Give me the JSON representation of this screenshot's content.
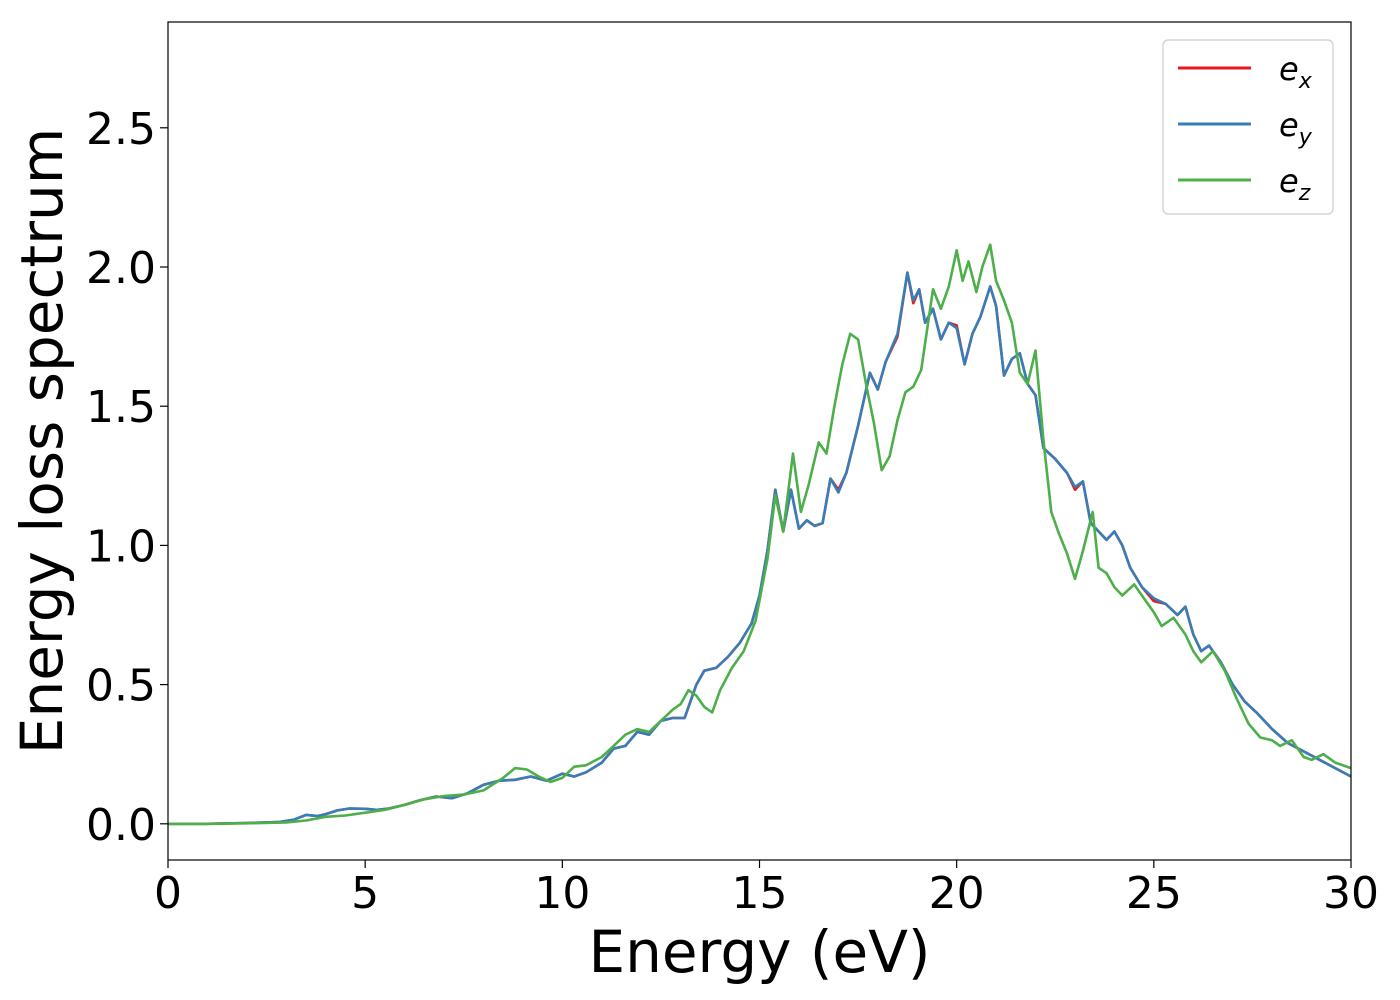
{
  "chart_data": {
    "type": "line",
    "title": "",
    "xlabel": "Energy (eV)",
    "ylabel": "Energy loss spectrum",
    "xlim": [
      0,
      30
    ],
    "ylim": [
      -0.13,
      2.88
    ],
    "xticks": [
      "0",
      "5",
      "10",
      "15",
      "20",
      "25",
      "30"
    ],
    "yticks": [
      "0.0",
      "0.5",
      "1.0",
      "1.5",
      "2.0",
      "2.5"
    ],
    "grid": false,
    "legend_position": "top-right",
    "series": [
      {
        "name": "e_x",
        "legend_base": "e",
        "legend_sub": "x",
        "color": "#e41a1c",
        "x": [
          0,
          1,
          2,
          2.8,
          3.2,
          3.5,
          3.8,
          4.0,
          4.3,
          4.6,
          5.0,
          5.3,
          5.6,
          6.0,
          6.4,
          6.8,
          7.2,
          7.6,
          8.0,
          8.4,
          8.8,
          9.2,
          9.6,
          10.0,
          10.3,
          10.6,
          11.0,
          11.3,
          11.6,
          11.9,
          12.2,
          12.5,
          12.8,
          13.1,
          13.4,
          13.6,
          13.9,
          14.2,
          14.5,
          14.8,
          15.0,
          15.2,
          15.4,
          15.6,
          15.8,
          16.0,
          16.2,
          16.4,
          16.6,
          16.8,
          17.0,
          17.2,
          17.5,
          17.8,
          18.0,
          18.2,
          18.5,
          18.75,
          18.9,
          19.05,
          19.2,
          19.4,
          19.6,
          19.8,
          20.0,
          20.2,
          20.4,
          20.6,
          20.85,
          21.0,
          21.2,
          21.4,
          21.6,
          21.8,
          22.0,
          22.2,
          22.5,
          22.8,
          23.0,
          23.2,
          23.4,
          23.6,
          23.8,
          24.0,
          24.2,
          24.4,
          24.7,
          25.0,
          25.3,
          25.6,
          25.8,
          26.0,
          26.2,
          26.4,
          26.7,
          27.0,
          27.3,
          27.6,
          28.0,
          28.4,
          28.8,
          29.2,
          29.6,
          30.0
        ],
        "y": [
          0.0,
          0.0,
          0.003,
          0.006,
          0.015,
          0.032,
          0.028,
          0.035,
          0.048,
          0.055,
          0.054,
          0.05,
          0.055,
          0.068,
          0.085,
          0.098,
          0.092,
          0.11,
          0.14,
          0.155,
          0.158,
          0.17,
          0.155,
          0.18,
          0.17,
          0.185,
          0.22,
          0.27,
          0.28,
          0.33,
          0.32,
          0.37,
          0.38,
          0.38,
          0.5,
          0.55,
          0.56,
          0.6,
          0.65,
          0.72,
          0.82,
          0.98,
          1.2,
          1.05,
          1.2,
          1.06,
          1.09,
          1.07,
          1.08,
          1.24,
          1.2,
          1.26,
          1.43,
          1.62,
          1.56,
          1.66,
          1.75,
          1.98,
          1.87,
          1.92,
          1.8,
          1.85,
          1.74,
          1.8,
          1.79,
          1.65,
          1.76,
          1.82,
          1.93,
          1.86,
          1.61,
          1.67,
          1.69,
          1.58,
          1.54,
          1.35,
          1.31,
          1.26,
          1.2,
          1.23,
          1.08,
          1.05,
          1.02,
          1.05,
          1.0,
          0.92,
          0.85,
          0.8,
          0.79,
          0.75,
          0.78,
          0.68,
          0.62,
          0.64,
          0.58,
          0.5,
          0.44,
          0.4,
          0.34,
          0.29,
          0.26,
          0.23,
          0.2,
          0.17
        ]
      },
      {
        "name": "e_y",
        "legend_base": "e",
        "legend_sub": "y",
        "color": "#377eb8",
        "x": [
          0,
          1,
          2,
          2.8,
          3.2,
          3.5,
          3.8,
          4.0,
          4.3,
          4.6,
          5.0,
          5.3,
          5.6,
          6.0,
          6.4,
          6.8,
          7.2,
          7.6,
          8.0,
          8.4,
          8.8,
          9.2,
          9.6,
          10.0,
          10.3,
          10.6,
          11.0,
          11.3,
          11.6,
          11.9,
          12.2,
          12.5,
          12.8,
          13.1,
          13.4,
          13.6,
          13.9,
          14.2,
          14.5,
          14.8,
          15.0,
          15.2,
          15.4,
          15.6,
          15.8,
          16.0,
          16.2,
          16.4,
          16.6,
          16.8,
          17.0,
          17.2,
          17.5,
          17.8,
          18.0,
          18.2,
          18.5,
          18.75,
          18.9,
          19.05,
          19.2,
          19.4,
          19.6,
          19.8,
          20.0,
          20.2,
          20.4,
          20.6,
          20.85,
          21.0,
          21.2,
          21.4,
          21.6,
          21.8,
          22.0,
          22.2,
          22.5,
          22.8,
          23.0,
          23.2,
          23.4,
          23.6,
          23.8,
          24.0,
          24.2,
          24.4,
          24.7,
          25.0,
          25.3,
          25.6,
          25.8,
          26.0,
          26.2,
          26.4,
          26.7,
          27.0,
          27.3,
          27.6,
          28.0,
          28.4,
          28.8,
          29.2,
          29.6,
          30.0
        ],
        "y": [
          0.0,
          0.0,
          0.003,
          0.006,
          0.015,
          0.032,
          0.028,
          0.035,
          0.048,
          0.055,
          0.054,
          0.05,
          0.055,
          0.068,
          0.085,
          0.098,
          0.092,
          0.11,
          0.14,
          0.155,
          0.158,
          0.17,
          0.155,
          0.18,
          0.17,
          0.185,
          0.22,
          0.27,
          0.28,
          0.33,
          0.32,
          0.37,
          0.38,
          0.38,
          0.5,
          0.55,
          0.56,
          0.6,
          0.65,
          0.72,
          0.82,
          0.98,
          1.2,
          1.05,
          1.2,
          1.06,
          1.09,
          1.07,
          1.08,
          1.24,
          1.19,
          1.26,
          1.43,
          1.62,
          1.56,
          1.66,
          1.76,
          1.98,
          1.88,
          1.92,
          1.8,
          1.85,
          1.74,
          1.8,
          1.78,
          1.65,
          1.76,
          1.82,
          1.93,
          1.86,
          1.61,
          1.67,
          1.69,
          1.58,
          1.54,
          1.35,
          1.31,
          1.26,
          1.21,
          1.23,
          1.08,
          1.05,
          1.02,
          1.05,
          1.0,
          0.92,
          0.85,
          0.81,
          0.79,
          0.75,
          0.78,
          0.68,
          0.62,
          0.64,
          0.58,
          0.5,
          0.44,
          0.4,
          0.34,
          0.29,
          0.26,
          0.23,
          0.2,
          0.17
        ]
      },
      {
        "name": "e_z",
        "legend_base": "e",
        "legend_sub": "z",
        "color": "#4daf4a",
        "x": [
          0,
          1,
          2,
          3.0,
          3.5,
          4.0,
          4.5,
          5.0,
          5.5,
          6.0,
          6.5,
          7.0,
          7.5,
          8.0,
          8.5,
          8.8,
          9.1,
          9.4,
          9.7,
          10.0,
          10.3,
          10.6,
          11.0,
          11.3,
          11.6,
          11.9,
          12.2,
          12.5,
          12.8,
          13.0,
          13.2,
          13.4,
          13.6,
          13.8,
          14.0,
          14.3,
          14.6,
          14.9,
          15.2,
          15.4,
          15.6,
          15.85,
          16.05,
          16.25,
          16.5,
          16.7,
          16.9,
          17.1,
          17.3,
          17.5,
          17.7,
          17.9,
          18.1,
          18.3,
          18.5,
          18.7,
          18.9,
          19.1,
          19.4,
          19.6,
          19.8,
          20.0,
          20.15,
          20.3,
          20.5,
          20.65,
          20.85,
          21.0,
          21.2,
          21.4,
          21.6,
          21.8,
          22.0,
          22.2,
          22.4,
          22.6,
          22.8,
          23.0,
          23.2,
          23.45,
          23.6,
          23.8,
          24.0,
          24.2,
          24.5,
          24.8,
          25.0,
          25.2,
          25.5,
          25.8,
          26.0,
          26.2,
          26.5,
          26.8,
          27.1,
          27.4,
          27.7,
          28.0,
          28.2,
          28.5,
          28.8,
          29.0,
          29.3,
          29.6,
          30.0
        ],
        "y": [
          0.0,
          0.0,
          0.002,
          0.005,
          0.012,
          0.025,
          0.03,
          0.04,
          0.05,
          0.068,
          0.088,
          0.1,
          0.105,
          0.12,
          0.165,
          0.2,
          0.195,
          0.17,
          0.15,
          0.165,
          0.205,
          0.21,
          0.24,
          0.28,
          0.32,
          0.34,
          0.33,
          0.37,
          0.41,
          0.43,
          0.48,
          0.46,
          0.42,
          0.4,
          0.48,
          0.56,
          0.62,
          0.73,
          0.95,
          1.18,
          1.05,
          1.33,
          1.12,
          1.22,
          1.37,
          1.33,
          1.5,
          1.65,
          1.76,
          1.74,
          1.58,
          1.44,
          1.27,
          1.32,
          1.45,
          1.55,
          1.57,
          1.63,
          1.92,
          1.85,
          1.93,
          2.06,
          1.95,
          2.02,
          1.91,
          2.0,
          2.08,
          1.95,
          1.88,
          1.8,
          1.62,
          1.58,
          1.7,
          1.38,
          1.12,
          1.04,
          0.97,
          0.88,
          0.98,
          1.12,
          0.92,
          0.9,
          0.85,
          0.82,
          0.86,
          0.8,
          0.76,
          0.71,
          0.74,
          0.68,
          0.62,
          0.58,
          0.62,
          0.55,
          0.45,
          0.36,
          0.31,
          0.3,
          0.28,
          0.3,
          0.24,
          0.23,
          0.25,
          0.22,
          0.2
        ]
      }
    ]
  }
}
